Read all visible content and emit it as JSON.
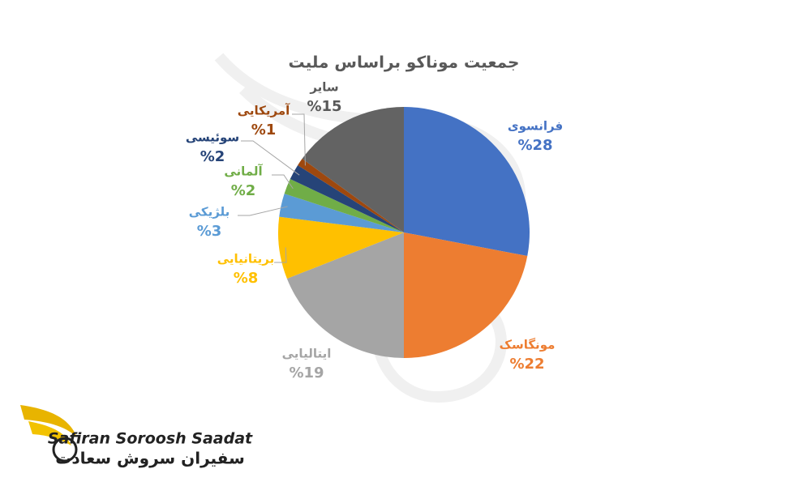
{
  "chart_data": {
    "type": "pie",
    "title": "جمعیت موناکو براساس ملیت",
    "categories": [
      "فرانسوی",
      "مونگاسک",
      "ایتالیایی",
      "بریتانیایی",
      "بلژیکی",
      "آلمانی",
      "سوئیسی",
      "آمریکایی",
      "سایر"
    ],
    "values": [
      28,
      22,
      19,
      8,
      3,
      2,
      2,
      1,
      15
    ],
    "value_labels": [
      "%28",
      "%22",
      "%19",
      "%8",
      "%3",
      "%2",
      "%2",
      "%1",
      "%15"
    ],
    "colors": [
      "#4472c4",
      "#ed7d31",
      "#a5a5a5",
      "#ffc000",
      "#5b9bd5",
      "#70ad47",
      "#264478",
      "#9e480e",
      "#636363"
    ]
  },
  "logo": {
    "latin": "Safiran Soroosh Saadat",
    "persian": "سفیران سروش سعادت"
  }
}
